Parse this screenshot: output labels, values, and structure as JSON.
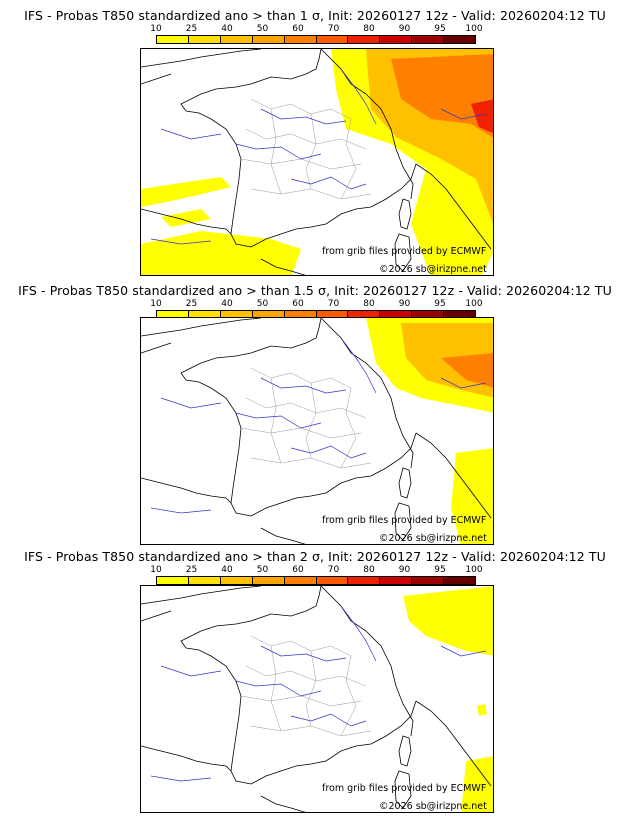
{
  "colorbar": {
    "ticks": [
      "10",
      "25",
      "40",
      "50",
      "60",
      "70",
      "80",
      "90",
      "95",
      "100"
    ],
    "colors": [
      "#ffff00",
      "#ffe100",
      "#ffc000",
      "#ffa500",
      "#ff8000",
      "#ff5a00",
      "#ee2200",
      "#cc0000",
      "#990000",
      "#660000"
    ]
  },
  "credits": {
    "source": "from grib files provided by ECMWF",
    "copyright": "©2026 sb@irizpne.net"
  },
  "panels": [
    {
      "title": "IFS - Probas T850  standardized ano > than 1 σ, Init: 20260127 12z - Valid: 20260204:12 TU",
      "threshold_sigma": 1
    },
    {
      "title": "IFS - Probas T850  standardized ano > than 1.5 σ, Init: 20260127 12z - Valid: 20260204:12 TU",
      "threshold_sigma": 1.5
    },
    {
      "title": "IFS - Probas T850  standardized ano > than 2 σ, Init: 20260127 12z - Valid: 20260204:12 TU",
      "threshold_sigma": 2
    }
  ]
}
